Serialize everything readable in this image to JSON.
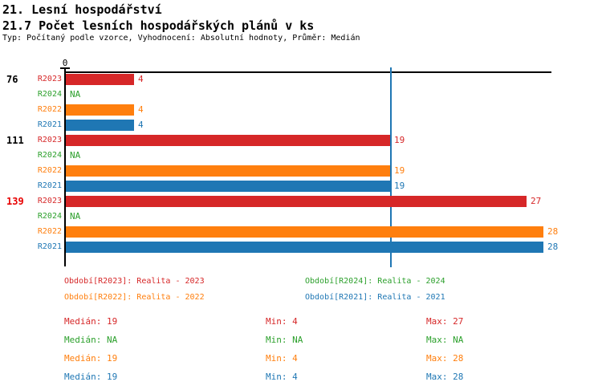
{
  "header": {
    "title_line1": "21. Lesní hospodářství",
    "title_line2": "21.7 Počet lesních hospodářských plánů v ks",
    "subtitle": "Typ: Počítaný podle vzorce, Vyhodnocení: Absolutní hodnoty, Průměr: Medián"
  },
  "colors": {
    "R2023": "#d62728",
    "R2024": "#2ca02c",
    "R2022": "#ff7f0e",
    "R2021": "#1f77b4",
    "highlight": "#e80000",
    "axis": "#000000",
    "median_line": "#1f77b4"
  },
  "chart_data": {
    "type": "bar",
    "orientation": "horizontal",
    "title": "21.7 Počet lesních hospodářských plánů v ks",
    "xlabel": "",
    "ylabel": "",
    "xlim": [
      0,
      28.5
    ],
    "axis_origin_label": "0",
    "grid": false,
    "median_reference_line": 19,
    "series_order": [
      "R2023",
      "R2024",
      "R2022",
      "R2021"
    ],
    "groups": [
      {
        "label": "76",
        "highlighted": false,
        "rows": [
          {
            "series": "R2023",
            "value": 4,
            "display": "4"
          },
          {
            "series": "R2024",
            "value": null,
            "display": "NA"
          },
          {
            "series": "R2022",
            "value": 4,
            "display": "4"
          },
          {
            "series": "R2021",
            "value": 4,
            "display": "4"
          }
        ]
      },
      {
        "label": "111",
        "highlighted": false,
        "rows": [
          {
            "series": "R2023",
            "value": 19,
            "display": "19"
          },
          {
            "series": "R2024",
            "value": null,
            "display": "NA"
          },
          {
            "series": "R2022",
            "value": 19,
            "display": "19"
          },
          {
            "series": "R2021",
            "value": 19,
            "display": "19"
          }
        ]
      },
      {
        "label": "139",
        "highlighted": true,
        "rows": [
          {
            "series": "R2023",
            "value": 27,
            "display": "27"
          },
          {
            "series": "R2024",
            "value": null,
            "display": "NA"
          },
          {
            "series": "R2022",
            "value": 28,
            "display": "28"
          },
          {
            "series": "R2021",
            "value": 28,
            "display": "28"
          }
        ]
      }
    ]
  },
  "legend": [
    {
      "series": "R2023",
      "label": "Období[R2023]: Realita - 2023"
    },
    {
      "series": "R2024",
      "label": "Období[R2024]: Realita - 2024"
    },
    {
      "series": "R2022",
      "label": "Období[R2022]: Realita - 2022"
    },
    {
      "series": "R2021",
      "label": "Období[R2021]: Realita - 2021"
    }
  ],
  "stats": [
    {
      "series": "R2023",
      "median": "Medián: 19",
      "min": "Min: 4",
      "max": "Max: 27"
    },
    {
      "series": "R2024",
      "median": "Medián: NA",
      "min": "Min: NA",
      "max": "Max: NA"
    },
    {
      "series": "R2022",
      "median": "Medián: 19",
      "min": "Min: 4",
      "max": "Max: 28"
    },
    {
      "series": "R2021",
      "median": "Medián: 19",
      "min": "Min: 4",
      "max": "Max: 28"
    }
  ]
}
